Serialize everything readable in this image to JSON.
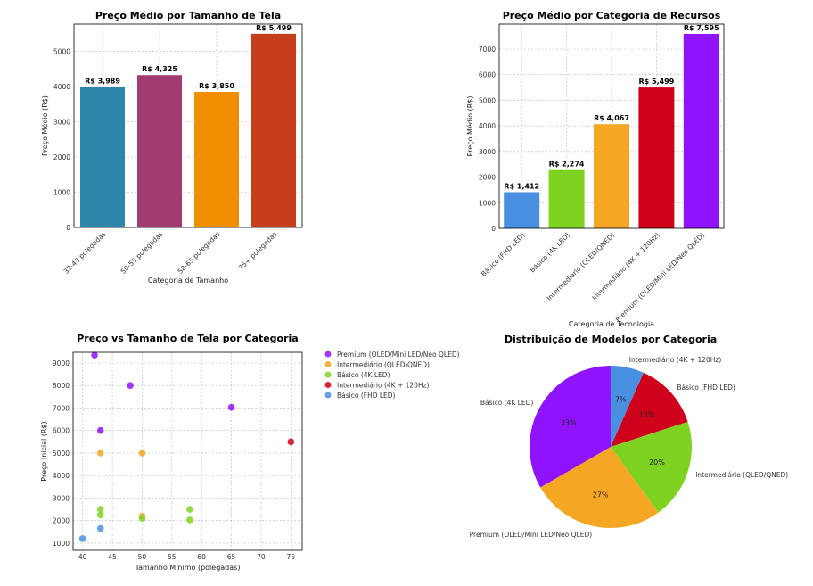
{
  "chart_data": [
    {
      "type": "bar",
      "title": "Preço Médio por Tamanho de Tela",
      "xlabel": "Categoria de Tamanho",
      "ylabel": "Preço Médio (R$)",
      "categories": [
        "32-43 polegadas",
        "50-55 polegadas",
        "58-65 polegadas",
        "75+ polegadas"
      ],
      "values": [
        3989,
        4325,
        3850,
        5499
      ],
      "data_labels": [
        "R$ 3,989",
        "R$ 4,325",
        "R$ 3,850",
        "R$ 5,499"
      ],
      "colors": [
        "#2e86ab",
        "#a23b72",
        "#f18f01",
        "#c73e1d"
      ],
      "ylim": [
        0,
        5774
      ],
      "yticks": [
        0,
        1000,
        2000,
        3000,
        4000,
        5000
      ],
      "grid": true
    },
    {
      "type": "bar",
      "title": "Preço Médio por Categoria de Recursos",
      "xlabel": "Categoria de Tecnologia",
      "ylabel": "Preço Médio (R$)",
      "categories": [
        "Básico (FHD LED)",
        "Básico (4K LED)",
        "Intermediário (QLED/QNED)",
        "Intermediário (4K + 120Hz)",
        "Premium (OLED/Mini LED/Neo QLED)"
      ],
      "values": [
        1412,
        2274,
        4067,
        5499,
        7595
      ],
      "data_labels": [
        "R$ 1,412",
        "R$ 2,274",
        "R$ 4,067",
        "R$ 5,499",
        "R$ 7,595"
      ],
      "colors": [
        "#4a90e2",
        "#7ed321",
        "#f5a623",
        "#d0021b",
        "#9013fe"
      ],
      "ylim": [
        0,
        7975
      ],
      "yticks": [
        0,
        1000,
        2000,
        3000,
        4000,
        5000,
        6000,
        7000
      ],
      "grid": true
    },
    {
      "type": "scatter",
      "title": "Preço vs Tamanho de Tela por Categoria",
      "xlabel": "Tamanho Mínimo (polegadas)",
      "ylabel": "Preço Inicial (R$)",
      "xlim": [
        38.4,
        76.9
      ],
      "ylim": [
        680,
        9475
      ],
      "xticks": [
        40,
        45,
        50,
        55,
        60,
        65,
        70,
        75
      ],
      "yticks": [
        1000,
        2000,
        3000,
        4000,
        5000,
        6000,
        7000,
        8000,
        9000
      ],
      "grid": true,
      "legend": "outside-right",
      "series": [
        {
          "name": "Premium (OLED/Mini LED/Neo QLED)",
          "color": "#9013fe",
          "points": [
            [
              42,
              9350
            ],
            [
              48,
              8000
            ],
            [
              65,
              7030
            ],
            [
              43,
              6000
            ]
          ]
        },
        {
          "name": "Intermediário (QLED/QNED)",
          "color": "#f5a623",
          "points": [
            [
              43,
              5000
            ],
            [
              50,
              5000
            ],
            [
              50,
              2200
            ]
          ]
        },
        {
          "name": "Básico (4K LED)",
          "color": "#7ed321",
          "points": [
            [
              43,
              2500
            ],
            [
              43,
              2250
            ],
            [
              50,
              2100
            ],
            [
              58,
              2500
            ],
            [
              58,
              2030
            ]
          ]
        },
        {
          "name": "Intermediário (4K + 120Hz)",
          "color": "#d0021b",
          "points": [
            [
              75,
              5500
            ]
          ]
        },
        {
          "name": "Básico (FHD LED)",
          "color": "#4a90e2",
          "points": [
            [
              40,
              1200
            ],
            [
              43,
              1650
            ]
          ]
        }
      ]
    },
    {
      "type": "pie",
      "title": "Distribuição de Modelos por Categoria",
      "slices": [
        {
          "label": "Intermediário (4K + 120Hz)",
          "value": 1,
          "pct": "7%",
          "color": "#4a90e2"
        },
        {
          "label": "Básico (FHD LED)",
          "value": 2,
          "pct": "13%",
          "color": "#d0021b"
        },
        {
          "label": "Intermediário (QLED/QNED)",
          "value": 3,
          "pct": "20%",
          "color": "#7ed321"
        },
        {
          "label": "Premium (OLED/Mini LED/Neo QLED)",
          "value": 4,
          "pct": "27%",
          "color": "#f5a623"
        },
        {
          "label": "Básico (4K LED)",
          "value": 5,
          "pct": "33%",
          "color": "#9013fe"
        }
      ]
    }
  ]
}
